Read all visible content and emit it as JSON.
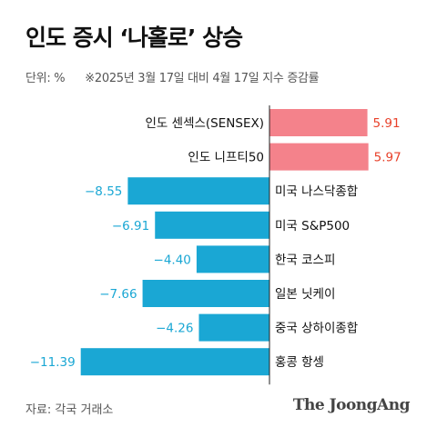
{
  "title": "인도 증시 ‘나홀로’ 상승",
  "subtitle": {
    "unit": "단위: %",
    "note": "※2025년 3월 17일 대비 4월 17일 지수 증감률"
  },
  "footer": {
    "source": "자료: 각국 거래소",
    "brand": "The JoongAng"
  },
  "colors": {
    "positive_bar": "#f4828b",
    "positive_label": "#e8412a",
    "negative_bar": "#1aa7d4",
    "negative_label": "#1aa7d4"
  },
  "chart_data": {
    "type": "bar",
    "orientation": "horizontal",
    "categories": [
      "인도 센섹스(SENSEX)",
      "인도 니프티50",
      "미국 나스닥종합",
      "미국 S&P500",
      "한국 코스피",
      "일본 닛케이",
      "중국 상하이종합",
      "홍콩 항셍"
    ],
    "values": [
      5.91,
      5.97,
      -8.55,
      -6.91,
      -4.4,
      -7.66,
      -4.26,
      -11.39
    ],
    "value_labels": [
      "5.91",
      "5.97",
      "−8.55",
      "−6.91",
      "−4.40",
      "−7.66",
      "−4.26",
      "−11.39"
    ],
    "title": "인도 증시 ‘나홀로’ 상승",
    "xlabel": "",
    "ylabel": "",
    "xlim": [
      -11.39,
      5.97
    ],
    "grid": false,
    "legend": "none"
  }
}
